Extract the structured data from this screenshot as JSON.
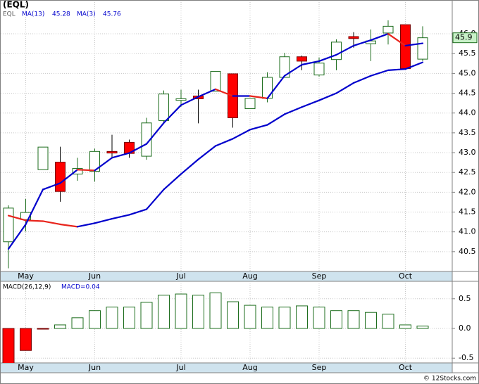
{
  "chart_data": [
    {
      "type": "candlestick",
      "title": "(EQL)",
      "symbol": "EQL",
      "open": [
        40.75,
        41.31,
        42.57,
        42.76,
        42.46,
        42.53,
        43.03,
        43.26,
        42.91,
        43.81,
        44.32,
        44.43,
        44.55,
        44.99,
        44.11,
        44.37,
        44.9,
        45.42,
        44.96,
        45.35,
        45.93,
        45.75,
        46.02,
        46.23,
        45.36
      ],
      "high": [
        41.67,
        41.83,
        43.14,
        43.15,
        42.87,
        43.1,
        43.45,
        43.33,
        43.88,
        44.57,
        44.59,
        44.59,
        45.05,
        44.99,
        44.37,
        45.03,
        45.52,
        45.45,
        45.4,
        45.86,
        46.04,
        46.11,
        46.34,
        46.23,
        46.19
      ],
      "low": [
        40.08,
        41.01,
        42.57,
        41.76,
        42.29,
        42.27,
        42.85,
        42.87,
        42.82,
        43.72,
        44.16,
        43.74,
        44.55,
        43.63,
        44.11,
        44.27,
        44.9,
        45.08,
        44.92,
        45.08,
        45.65,
        45.31,
        45.73,
        45.12,
        45.31
      ],
      "close": [
        41.6,
        41.49,
        43.14,
        42.02,
        42.6,
        43.03,
        42.99,
        42.98,
        43.75,
        44.48,
        44.36,
        44.36,
        45.05,
        43.88,
        44.37,
        44.9,
        45.42,
        45.31,
        45.26,
        45.79,
        45.88,
        45.82,
        46.19,
        45.12,
        45.9
      ],
      "up_color": "#1e6e1e",
      "down_color": "#ff0000",
      "line_up_color": "#0000cc",
      "line_down_color": "#e8241c",
      "series": [
        {
          "name": "MA(13)",
          "values": [
            41.41,
            41.29,
            41.27,
            41.19,
            41.13,
            41.22,
            41.33,
            41.43,
            41.57,
            42.07,
            42.46,
            42.83,
            43.17,
            43.35,
            43.58,
            43.7,
            43.97,
            44.15,
            44.32,
            44.5,
            44.76,
            44.94,
            45.08,
            45.11,
            45.28
          ]
        },
        {
          "name": "MA(3)",
          "values": [
            40.57,
            41.19,
            42.07,
            42.23,
            42.57,
            42.55,
            42.87,
            42.99,
            43.22,
            43.75,
            44.2,
            44.41,
            44.6,
            44.43,
            44.43,
            44.37,
            44.94,
            45.22,
            45.31,
            45.47,
            45.7,
            45.84,
            46.0,
            45.7,
            45.76
          ]
        }
      ],
      "ylim": [
        40.0,
        46.8
      ],
      "yticks": [
        40.5,
        {
          "value": 41,
          "label": "41.0"
        },
        41.5,
        {
          "value": 42,
          "label": "42.0"
        },
        42.5,
        {
          "value": 43,
          "label": "43.0"
        },
        43.5,
        {
          "value": 44,
          "label": "44.0"
        },
        44.5,
        {
          "value": 45,
          "label": "45.0"
        },
        45.5,
        {
          "value": 46,
          "label": "46.0"
        }
      ],
      "xticks": [
        {
          "value": 1,
          "label": "May"
        },
        {
          "value": 5,
          "label": "Jun"
        },
        {
          "value": 10,
          "label": "Jul"
        },
        {
          "value": 14,
          "label": "Aug"
        },
        {
          "value": 18,
          "label": "Sep"
        },
        {
          "value": 23,
          "label": "Oct"
        }
      ],
      "grid": true
    },
    {
      "type": "bar",
      "title": "MACD(26,12,9)",
      "legend_label": "MACD=0.04",
      "values": [
        -0.62,
        -0.37,
        -0.01,
        0.06,
        0.18,
        0.3,
        0.36,
        0.36,
        0.44,
        0.56,
        0.58,
        0.56,
        0.6,
        0.45,
        0.39,
        0.36,
        0.36,
        0.38,
        0.36,
        0.3,
        0.3,
        0.27,
        0.24,
        0.06,
        0.04
      ],
      "up_color": "#1e6e1e",
      "down_color": "#ff0000",
      "ylim": [
        -0.58,
        0.77
      ],
      "yticks": [
        -0.5,
        {
          "value": 0,
          "label": "0.0"
        },
        0.5
      ],
      "xticks": [
        {
          "value": 1,
          "label": "May"
        },
        {
          "value": 5,
          "label": "Jun"
        },
        {
          "value": 10,
          "label": "Jul"
        },
        {
          "value": 14,
          "label": "Aug"
        },
        {
          "value": 18,
          "label": "Sep"
        },
        {
          "value": 23,
          "label": "Oct"
        }
      ],
      "grid": true
    }
  ],
  "footer": "© 12Stocks.com"
}
